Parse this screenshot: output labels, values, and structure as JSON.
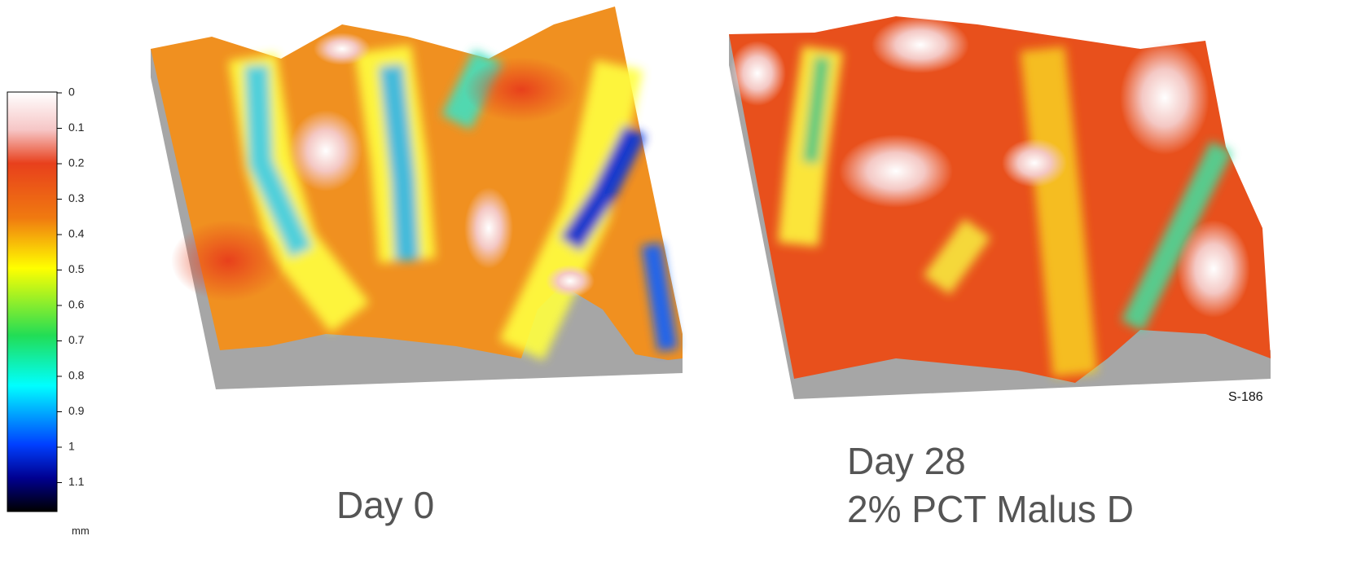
{
  "colorbar": {
    "ticks": [
      0,
      0.1,
      0.2,
      0.3,
      0.4,
      0.5,
      0.6,
      0.7,
      0.8,
      0.9,
      1,
      1.1
    ],
    "unit": "mm"
  },
  "panels": [
    {
      "lines": [
        "Day 0"
      ]
    },
    {
      "lines": [
        "Day 28",
        "2% PCT Malus D"
      ]
    }
  ],
  "code": "S-186"
}
